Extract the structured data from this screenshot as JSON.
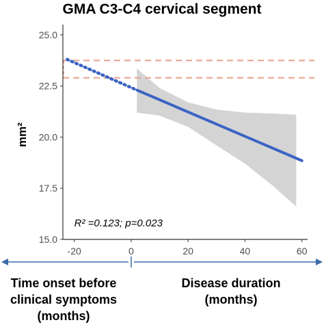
{
  "chart_data": {
    "type": "line",
    "title": "GMA C3-C4 cervical segment",
    "ylabel": "mm²",
    "xlim": [
      -24,
      62
    ],
    "ylim": [
      15.0,
      25.5
    ],
    "x_ticks": [
      -20,
      0,
      20,
      40,
      60
    ],
    "y_ticks": [
      15.0,
      17.5,
      20.0,
      22.5,
      25.0
    ],
    "y_tick_labels": [
      "15.0",
      "17.5",
      "20.0",
      "22.5",
      "25.0"
    ],
    "series": [
      {
        "style": "solid",
        "color": "#3b63c4",
        "x": [
          2,
          60
        ],
        "y": [
          22.3,
          18.85
        ]
      },
      {
        "style": "dotted",
        "color": "#3b63c4",
        "x": [
          -22.5,
          2
        ],
        "y": [
          23.8,
          22.3
        ]
      }
    ],
    "confidence_band": {
      "color": "#d4d4d4",
      "x": [
        2,
        10,
        20,
        30,
        40,
        50,
        58
      ],
      "upper": [
        23.35,
        22.4,
        21.7,
        21.35,
        21.2,
        21.15,
        21.1
      ],
      "lower": [
        21.2,
        21.05,
        20.5,
        19.6,
        18.7,
        17.6,
        16.6
      ]
    },
    "reference_lines": {
      "style": "dashed",
      "color": "#e8a08a",
      "y": [
        23.75,
        22.9
      ]
    },
    "annotation": "R² =0.123;  p=0.023",
    "annotation_anchor": {
      "x": -20,
      "y": 15.8
    }
  },
  "timeline": {
    "left_label_lines": [
      "Time onset before",
      "clinical symptoms",
      "(months)"
    ],
    "right_label_lines": [
      "Disease duration",
      "(months)"
    ],
    "arrow_color": "#3a6aa8"
  }
}
